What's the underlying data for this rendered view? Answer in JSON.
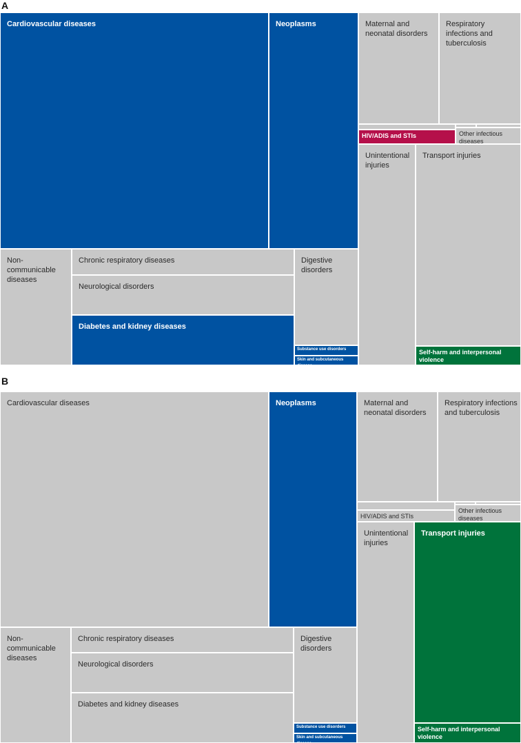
{
  "colors": {
    "grey": "#c8c8c8",
    "blue": "#0052a1",
    "red": "#b5104a",
    "green": "#00733b"
  },
  "chart_data": [
    {
      "type": "treemap",
      "panel": "A",
      "title": "",
      "highlight": [
        "Cardiovascular diseases",
        "Neoplasms",
        "Diabetes and kidney diseases",
        "Substance use disorders",
        "Skin and subcutaneous disease",
        "HIV/ADIS and STIs",
        "Self-harm and interpersonal violence"
      ],
      "cells": [
        {
          "key": "cardiovascular",
          "label": "Cardiovascular diseases",
          "color": "blue",
          "bold": true
        },
        {
          "key": "neoplasms",
          "label": "Neoplasms",
          "color": "blue",
          "bold": true
        },
        {
          "key": "ncd",
          "label": "Non-communicable diseases",
          "color": "grey"
        },
        {
          "key": "chronic-resp",
          "label": "Chronic respiratory diseases",
          "color": "grey"
        },
        {
          "key": "neuro",
          "label": "Neurological disorders",
          "color": "grey"
        },
        {
          "key": "diabetes",
          "label": "Diabetes and kidney diseases",
          "color": "blue",
          "bold": true
        },
        {
          "key": "digestive",
          "label": "Digestive disorders",
          "color": "grey"
        },
        {
          "key": "substance",
          "label": "Substance use disorders",
          "color": "blue",
          "bold": true
        },
        {
          "key": "skin",
          "label": "Skin and subcutaneous disease",
          "color": "blue",
          "bold": true
        },
        {
          "key": "maternal",
          "label": "Maternal and neonatal disorders",
          "color": "grey"
        },
        {
          "key": "resp-inf",
          "label": "Respiratory infections and tuberculosis",
          "color": "grey"
        },
        {
          "key": "blank1",
          "label": "",
          "color": "grey"
        },
        {
          "key": "blank2",
          "label": "",
          "color": "grey"
        },
        {
          "key": "blank3",
          "label": "",
          "color": "grey"
        },
        {
          "key": "hiv",
          "label": "HIV/ADIS and STIs",
          "color": "red",
          "bold": true
        },
        {
          "key": "other-inf",
          "label": "Other infectious diseases",
          "color": "grey"
        },
        {
          "key": "unintentional",
          "label": "Unintentional injuries",
          "color": "grey"
        },
        {
          "key": "transport",
          "label": "Transport injuries",
          "color": "grey"
        },
        {
          "key": "selfharm",
          "label": "Self-harm and interpersonal violence",
          "color": "green",
          "bold": true
        }
      ]
    },
    {
      "type": "treemap",
      "panel": "B",
      "title": "",
      "highlight": [
        "Neoplasms",
        "Substance use disorders",
        "Skin and subcutaneous disease",
        "Transport injuries",
        "Self-harm and interpersonal violence"
      ],
      "cells": [
        {
          "key": "cardiovascular",
          "label": "Cardiovascular diseases",
          "color": "grey"
        },
        {
          "key": "neoplasms",
          "label": "Neoplasms",
          "color": "blue",
          "bold": true
        },
        {
          "key": "ncd",
          "label": "Non-communicable diseases",
          "color": "grey"
        },
        {
          "key": "chronic-resp",
          "label": "Chronic respiratory diseases",
          "color": "grey"
        },
        {
          "key": "neuro",
          "label": "Neurological disorders",
          "color": "grey"
        },
        {
          "key": "diabetes",
          "label": "Diabetes and kidney diseases",
          "color": "grey"
        },
        {
          "key": "digestive",
          "label": "Digestive disorders",
          "color": "grey"
        },
        {
          "key": "substance",
          "label": "Substance use disorders",
          "color": "blue",
          "bold": true
        },
        {
          "key": "skin",
          "label": "Skin and subcutaneous disease",
          "color": "blue",
          "bold": true
        },
        {
          "key": "maternal",
          "label": "Maternal and neonatal disorders",
          "color": "grey"
        },
        {
          "key": "resp-inf",
          "label": "Respiratory infections and tuberculosis",
          "color": "grey"
        },
        {
          "key": "blank1",
          "label": "",
          "color": "grey"
        },
        {
          "key": "blank2",
          "label": "",
          "color": "grey"
        },
        {
          "key": "blank3",
          "label": "",
          "color": "grey"
        },
        {
          "key": "hiv",
          "label": "HIV/ADIS and STIs",
          "color": "grey"
        },
        {
          "key": "other-inf",
          "label": "Other infectious diseases",
          "color": "grey"
        },
        {
          "key": "unintentional",
          "label": "Unintentional injuries",
          "color": "grey"
        },
        {
          "key": "transport",
          "label": "Transport injuries",
          "color": "green",
          "bold": true
        },
        {
          "key": "selfharm",
          "label": "Self-harm and interpersonal violence",
          "color": "green",
          "bold": true
        }
      ]
    }
  ]
}
